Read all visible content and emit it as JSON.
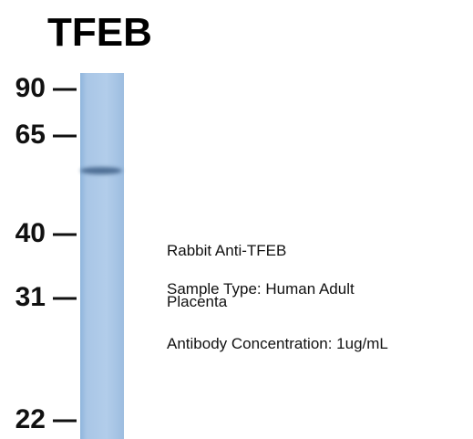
{
  "title": "TFEB",
  "markers": [
    "90",
    "65",
    "40",
    "31",
    "22"
  ],
  "annotations": {
    "antibody": "Rabbit Anti-TFEB",
    "sample_type": [
      "Sample Type: Human Adult",
      "Placenta"
    ],
    "concentration": "Antibody Concentration: 1ug/mL"
  }
}
